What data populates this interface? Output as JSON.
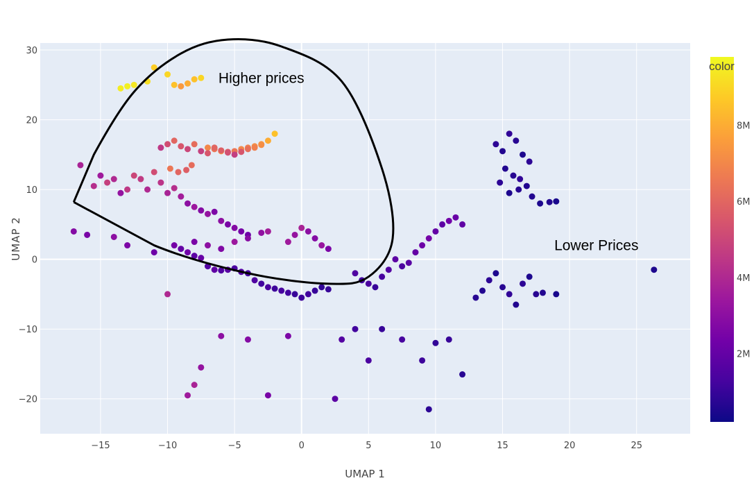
{
  "chart_data": {
    "type": "scatter",
    "title": "",
    "xlabel": "UMAP 1",
    "ylabel": "UMAP 2",
    "xlim": [
      -19.5,
      29
    ],
    "ylim": [
      -25,
      31
    ],
    "xticks": [
      -15,
      -10,
      -5,
      0,
      5,
      10,
      15,
      20,
      25
    ],
    "yticks": [
      -20,
      -10,
      0,
      10,
      20,
      30
    ],
    "xtick_labels": [
      "−15",
      "−10",
      "−5",
      "0",
      "5",
      "10",
      "15",
      "20",
      "25"
    ],
    "ytick_labels": [
      "−20",
      "−10",
      "0",
      "10",
      "20",
      "30"
    ],
    "grid": true,
    "colorbar": {
      "title": "color",
      "min": 0.2,
      "max": 9.8,
      "ticks": [
        2,
        4,
        6,
        8
      ],
      "tick_labels": [
        "2M",
        "4M",
        "6M",
        "8M"
      ],
      "colorscale": [
        "#0d0887",
        "#46039f",
        "#7201a8",
        "#9c179e",
        "#bd3786",
        "#d8576b",
        "#ed7953",
        "#fb9f3a",
        "#fdca26",
        "#f0f921"
      ]
    },
    "annotations": [
      {
        "text": "Higher prices",
        "x": -3,
        "y": 26
      },
      {
        "text": "Lower Prices",
        "x": 22,
        "y": 2
      }
    ],
    "outline_region": [
      [
        -17,
        8.2
      ],
      [
        -15.5,
        15
      ],
      [
        -12.5,
        24
      ],
      [
        -9,
        29.5
      ],
      [
        -5.5,
        31.5
      ],
      [
        -1.5,
        30.5
      ],
      [
        3,
        25.5
      ],
      [
        6,
        13
      ],
      [
        6.8,
        3
      ],
      [
        5,
        -2.5
      ],
      [
        2,
        -3.5
      ],
      [
        -4,
        -2
      ],
      [
        -11,
        2
      ],
      [
        -17,
        8.2
      ]
    ],
    "clusters": [
      {
        "x": [
          -13.5,
          -13,
          -12.5,
          -11.5,
          -11,
          -10,
          -9.5,
          -9,
          -8.5,
          -8,
          -7.5,
          -7,
          -6.5,
          -6,
          -5.5,
          -5,
          -4.5,
          -4,
          -3.5,
          -3,
          -2.5,
          -2
        ],
        "y": [
          24.5,
          24.8,
          25,
          25.5,
          27.5,
          26.5,
          25,
          24.8,
          25.2,
          25.8,
          26,
          16,
          15.8,
          15.5,
          15.4,
          15.5,
          15.8,
          16,
          16.2,
          16.5,
          17,
          18
        ],
        "c": [
          9.5,
          9.6,
          9.4,
          9.2,
          8.8,
          9.0,
          8.5,
          7.5,
          8.0,
          8.5,
          9.0,
          7.0,
          6.5,
          7.5,
          6.0,
          6.5,
          7.0,
          6.8,
          7.2,
          7.5,
          8.0,
          8.5
        ]
      },
      {
        "x": [
          -10.5,
          -10,
          -9.5,
          -9,
          -8.5,
          -8,
          -7.5,
          -7,
          -6.5,
          -6,
          -5.5,
          -5,
          -4.5,
          -4,
          -3.5,
          -3,
          -9.8,
          -9.2,
          -8.6,
          -8.2
        ],
        "y": [
          16,
          16.5,
          17,
          16.2,
          15.8,
          16.5,
          15.5,
          15.2,
          16,
          15.6,
          15.3,
          15,
          15.4,
          15.8,
          16,
          16.4,
          13,
          12.5,
          12.8,
          13.5
        ],
        "c": [
          4.5,
          5.2,
          6.0,
          5.5,
          5.0,
          6.2,
          4.8,
          5.5,
          6.0,
          5.8,
          5.3,
          4.7,
          5.5,
          6.3,
          6.8,
          7.2,
          6.5,
          6.0,
          5.8,
          6.2
        ]
      },
      {
        "x": [
          -16.5,
          -15.5,
          -15,
          -14.5,
          -14,
          -13.5,
          -13,
          -12.5,
          -12,
          -11.5,
          -11,
          -10.5,
          -10,
          -9.5,
          -9,
          -8.5,
          -8,
          -7.5,
          -7,
          -6.5,
          -6,
          -5.5,
          -5,
          -4.5,
          -4
        ],
        "y": [
          13.5,
          10.5,
          12,
          11,
          11.5,
          9.5,
          10,
          12,
          11.5,
          10,
          12.5,
          11,
          9.5,
          10.2,
          9,
          8,
          7.5,
          7,
          6.5,
          6.8,
          5.5,
          5,
          4.5,
          4,
          3.5
        ],
        "c": [
          3.8,
          4.2,
          3.5,
          4.8,
          4.0,
          3.2,
          4.5,
          5.0,
          4.6,
          4.0,
          5.2,
          4.4,
          3.8,
          4.2,
          3.6,
          3.0,
          3.4,
          2.8,
          3.2,
          2.6,
          3.0,
          2.5,
          2.8,
          2.4,
          2.2
        ]
      },
      {
        "x": [
          -17,
          -16,
          -14,
          -13,
          -11,
          -9.5,
          -9,
          -8.5,
          -8,
          -7.5,
          -7,
          -6.5,
          -6,
          -5.5,
          -5,
          -4.5,
          -4,
          -3.5,
          -3,
          -2.5,
          -2,
          -1.5,
          -1,
          -0.5,
          0,
          0.5,
          1,
          1.5,
          2
        ],
        "y": [
          4,
          3.5,
          3.2,
          2,
          1,
          2,
          1.5,
          1,
          0.5,
          0.2,
          -1,
          -1.5,
          -1.6,
          -1.5,
          -1.3,
          -1.8,
          -2,
          -3,
          -3.5,
          -4,
          -4.2,
          -4.5,
          -4.8,
          -5,
          -5.5,
          -5,
          -4.5,
          -4,
          -4.3
        ],
        "c": [
          2.8,
          2.5,
          3.0,
          2.6,
          2.2,
          2.4,
          2.0,
          2.3,
          1.8,
          2.1,
          1.6,
          1.9,
          1.5,
          1.7,
          1.4,
          1.6,
          1.3,
          1.5,
          1.2,
          1.4,
          1.1,
          1.3,
          1.2,
          1.0,
          1.1,
          1.2,
          1.0,
          0.9,
          1.0
        ]
      },
      {
        "x": [
          -1,
          -0.5,
          0,
          0.5,
          1,
          1.5,
          2,
          -2.5,
          -3,
          -4,
          -5,
          -6,
          -7,
          -8
        ],
        "y": [
          2.5,
          3.5,
          4.5,
          4,
          3,
          2,
          1.5,
          4,
          3.8,
          3,
          2.5,
          1.5,
          2,
          2.5
        ],
        "c": [
          3.5,
          3.2,
          3.8,
          3.0,
          2.8,
          3.3,
          2.6,
          3.6,
          3.1,
          2.9,
          3.4,
          2.7,
          3.0,
          2.5
        ]
      },
      {
        "x": [
          4,
          4.5,
          5,
          5.5,
          6,
          6.5,
          7,
          7.5,
          8,
          8.5,
          9,
          9.5,
          10,
          10.5,
          11,
          11.5,
          12
        ],
        "y": [
          -2,
          -3,
          -3.5,
          -4,
          -2.5,
          -1.5,
          0,
          -1,
          -0.5,
          1,
          2,
          3,
          4,
          5,
          5.5,
          6,
          5
        ],
        "c": [
          1.5,
          1.2,
          1.4,
          1.0,
          1.3,
          1.6,
          1.8,
          1.4,
          1.7,
          2.0,
          2.2,
          2.4,
          2.0,
          1.8,
          2.3,
          2.1,
          1.9
        ]
      },
      {
        "x": [
          14.5,
          15,
          15.5,
          16,
          16.5,
          17,
          15.2,
          15.8,
          16.3,
          16.8,
          14.8,
          15.5,
          16.2,
          17.2,
          17.8,
          18.5,
          19
        ],
        "y": [
          16.5,
          15.5,
          18,
          17,
          15,
          14,
          13,
          12,
          11.5,
          10.5,
          11,
          9.5,
          10,
          9,
          8,
          8.2,
          8.3
        ],
        "c": [
          0.8,
          0.6,
          0.9,
          0.7,
          0.5,
          0.8,
          0.6,
          0.7,
          0.9,
          0.6,
          0.8,
          0.5,
          0.7,
          0.6,
          0.5,
          0.6,
          0.4
        ]
      },
      {
        "x": [
          13,
          13.5,
          14,
          14.5,
          15,
          15.5,
          16,
          16.5,
          17,
          17.5,
          18,
          19
        ],
        "y": [
          -5.5,
          -4.5,
          -3,
          -2,
          -4,
          -5,
          -6.5,
          -3.5,
          -2.5,
          -5,
          -4.8,
          -5
        ],
        "c": [
          0.7,
          0.6,
          0.8,
          0.5,
          0.7,
          0.9,
          0.6,
          0.8,
          0.5,
          0.7,
          0.6,
          0.4
        ]
      },
      {
        "x": [
          -10,
          -8.5,
          -8,
          -7.5,
          -6,
          -4,
          -2.5,
          -1,
          2.5,
          3,
          4,
          5,
          6,
          7.5,
          9,
          9.5,
          10,
          11,
          12,
          26.3
        ],
        "y": [
          -5,
          -19.5,
          -18,
          -15.5,
          -11,
          -11.5,
          -19.5,
          -11,
          -20,
          -11.5,
          -10,
          -14.5,
          -10,
          -11.5,
          -14.5,
          -21.5,
          -12,
          -11.5,
          -16.5,
          -1.5
        ],
        "c": [
          4.0,
          3.5,
          3.8,
          3.2,
          3.0,
          2.8,
          2.5,
          2.6,
          1.8,
          1.6,
          1.2,
          1.4,
          1.0,
          1.3,
          1.1,
          0.8,
          0.9,
          1.0,
          0.7,
          0.5
        ]
      }
    ]
  }
}
